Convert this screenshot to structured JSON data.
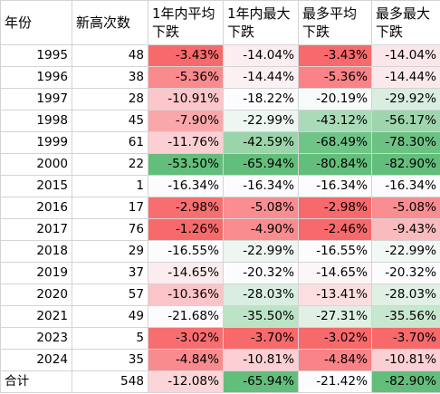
{
  "headers": [
    "年份",
    "新高次数",
    "1年内平均下跌",
    "1年内最大下跌",
    "最多平均下跌",
    "最多最大下跌"
  ],
  "rows": [
    {
      "year": "1995",
      "count": "48",
      "avg1y": "-3.43%",
      "max1y": "-14.04%",
      "avgAll": "-3.43%",
      "maxAll": "-14.04%",
      "c1": "#f8696b",
      "c2": "#fcedf0",
      "c3": "#f8696b",
      "c4": "#fce6e9"
    },
    {
      "year": "1996",
      "count": "38",
      "avg1y": "-5.36%",
      "max1y": "-14.44%",
      "avgAll": "-5.36%",
      "maxAll": "-14.44%",
      "c1": "#f98a8d",
      "c2": "#fcf0f2",
      "c3": "#f98387",
      "c4": "#fce9eb"
    },
    {
      "year": "1997",
      "count": "28",
      "avg1y": "-10.91%",
      "max1y": "-18.22%",
      "avgAll": "-20.19%",
      "maxAll": "-29.92%",
      "c1": "#fbc7ca",
      "c2": "#fcfcff",
      "c3": "#f6faf8",
      "c4": "#d9ede0"
    },
    {
      "year": "1998",
      "count": "45",
      "avg1y": "-7.90%",
      "max1y": "-22.99%",
      "avgAll": "-43.12%",
      "maxAll": "-56.17%",
      "c1": "#faa7aa",
      "c2": "#edf6f0",
      "c3": "#aadbb9",
      "c4": "#9ed5ad"
    },
    {
      "year": "1999",
      "count": "61",
      "avg1y": "-11.76%",
      "max1y": "-42.59%",
      "avgAll": "-68.49%",
      "maxAll": "-78.30%",
      "c1": "#fbcfd3",
      "c2": "#9bd4aa",
      "c3": "#70c488",
      "c4": "#6cc283"
    },
    {
      "year": "2000",
      "count": "22",
      "avg1y": "-53.50%",
      "max1y": "-65.94%",
      "avgAll": "-80.84%",
      "maxAll": "-82.90%",
      "c1": "#63be7b",
      "c2": "#63be7b",
      "c3": "#63be7b",
      "c4": "#63be7b"
    },
    {
      "year": "2015",
      "count": "1",
      "avg1y": "-16.34%",
      "max1y": "-16.34%",
      "avgAll": "-16.34%",
      "maxAll": "-16.34%",
      "c1": "#fcfcff",
      "c2": "#fcfcff",
      "c3": "#fcfcff",
      "c4": "#fcfcff"
    },
    {
      "year": "2016",
      "count": "17",
      "avg1y": "-2.98%",
      "max1y": "-5.08%",
      "avgAll": "-2.98%",
      "maxAll": "-5.08%",
      "c1": "#f86e70",
      "c2": "#f98d91",
      "c3": "#f8696b",
      "c4": "#f98d91"
    },
    {
      "year": "2017",
      "count": "76",
      "avg1y": "-1.26%",
      "max1y": "-4.90%",
      "avgAll": "-2.46%",
      "maxAll": "-9.43%",
      "c1": "#f8696b",
      "c2": "#f98c8f",
      "c3": "#f8696b",
      "c4": "#fabbbe"
    },
    {
      "year": "2018",
      "count": "29",
      "avg1y": "-16.55%",
      "max1y": "-22.99%",
      "avgAll": "-16.55%",
      "maxAll": "-22.99%",
      "c1": "#fcfcff",
      "c2": "#edf6f0",
      "c3": "#fcfcff",
      "c4": "#f2f8f4"
    },
    {
      "year": "2019",
      "count": "37",
      "avg1y": "-14.65%",
      "max1y": "-20.32%",
      "avgAll": "-14.65%",
      "maxAll": "-20.32%",
      "c1": "#fcecef",
      "c2": "#fcfcff",
      "c3": "#fcf6f8",
      "c4": "#fcfcff"
    },
    {
      "year": "2020",
      "count": "57",
      "avg1y": "-10.36%",
      "max1y": "-28.03%",
      "avgAll": "-13.41%",
      "maxAll": "-28.03%",
      "c1": "#fbc5c8",
      "c2": "#d9ede0",
      "c3": "#fcdee1",
      "c4": "#e0f0e5"
    },
    {
      "year": "2021",
      "count": "49",
      "avg1y": "-21.68%",
      "max1y": "-35.50%",
      "avgAll": "-27.31%",
      "maxAll": "-35.56%",
      "c1": "#fcfcff",
      "c2": "#bde3c7",
      "c3": "#e0f0e5",
      "c4": "#c7e7cf"
    },
    {
      "year": "2023",
      "count": "5",
      "avg1y": "-3.02%",
      "max1y": "-3.70%",
      "avgAll": "-3.02%",
      "maxAll": "-3.70%",
      "c1": "#f86e70",
      "c2": "#f8696b",
      "c3": "#f8696b",
      "c4": "#f8696b"
    },
    {
      "year": "2024",
      "count": "35",
      "avg1y": "-4.84%",
      "max1y": "-10.81%",
      "avgAll": "-4.84%",
      "maxAll": "-10.81%",
      "c1": "#f98a8d",
      "c2": "#fbcfd3",
      "c3": "#f98387",
      "c4": "#fbcfd3"
    }
  ],
  "total": {
    "label": "合计",
    "count": "548",
    "avg1y": "-12.08%",
    "max1y": "-65.94%",
    "avgAll": "-21.42%",
    "maxAll": "-82.90%",
    "c1": "#fbd5d8",
    "c2": "#63be7b",
    "c3": "#fcfcff",
    "c4": "#63be7b"
  }
}
